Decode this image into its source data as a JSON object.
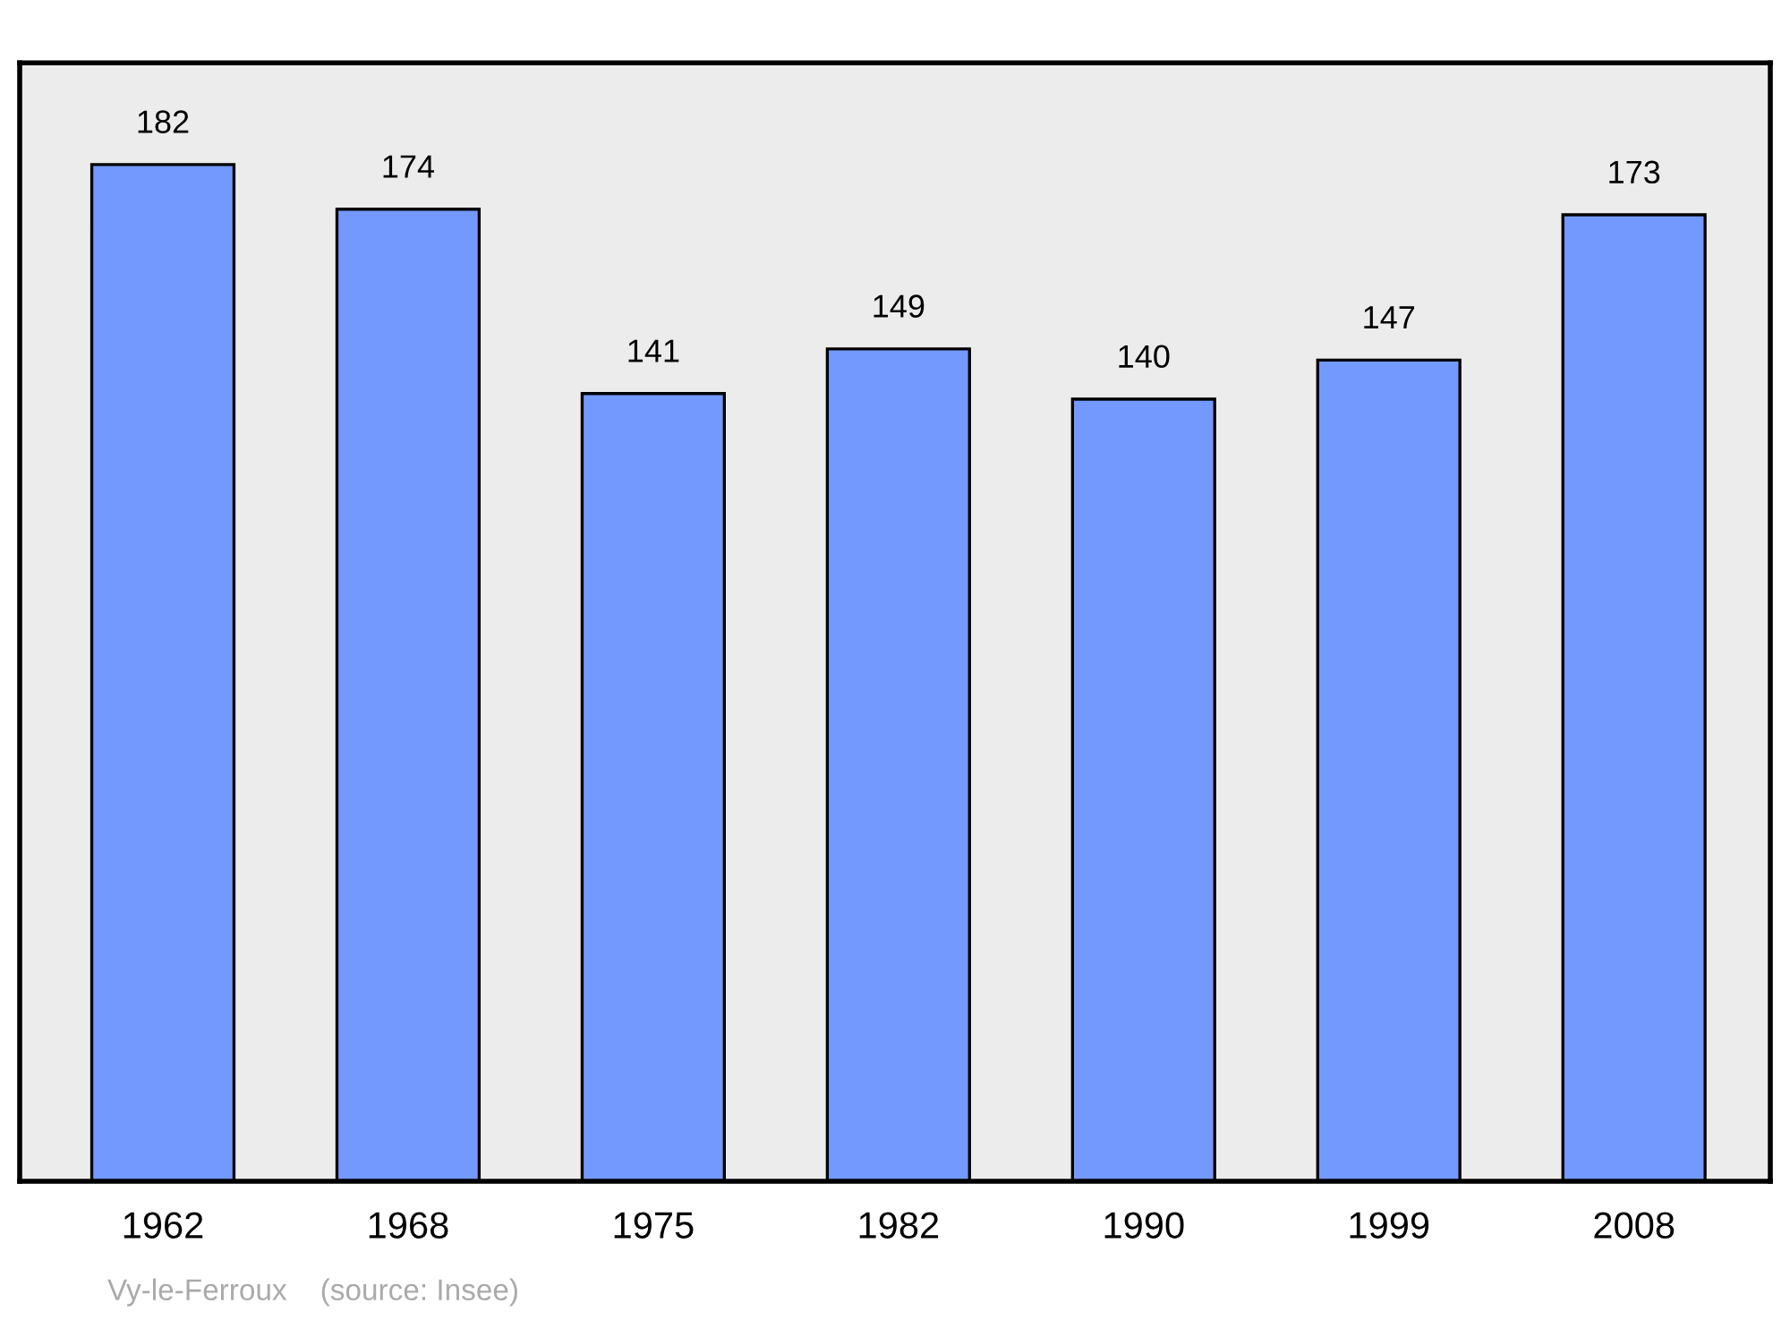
{
  "chart_data": {
    "type": "bar",
    "categories": [
      "1962",
      "1968",
      "1975",
      "1982",
      "1990",
      "1999",
      "2008"
    ],
    "values": [
      182,
      174,
      141,
      149,
      140,
      147,
      173
    ],
    "color": "#7399ff",
    "data_labels": true,
    "grid": false,
    "legend": false,
    "annotations": [
      "Vy-le-Ferroux    (source: Insee)"
    ]
  }
}
